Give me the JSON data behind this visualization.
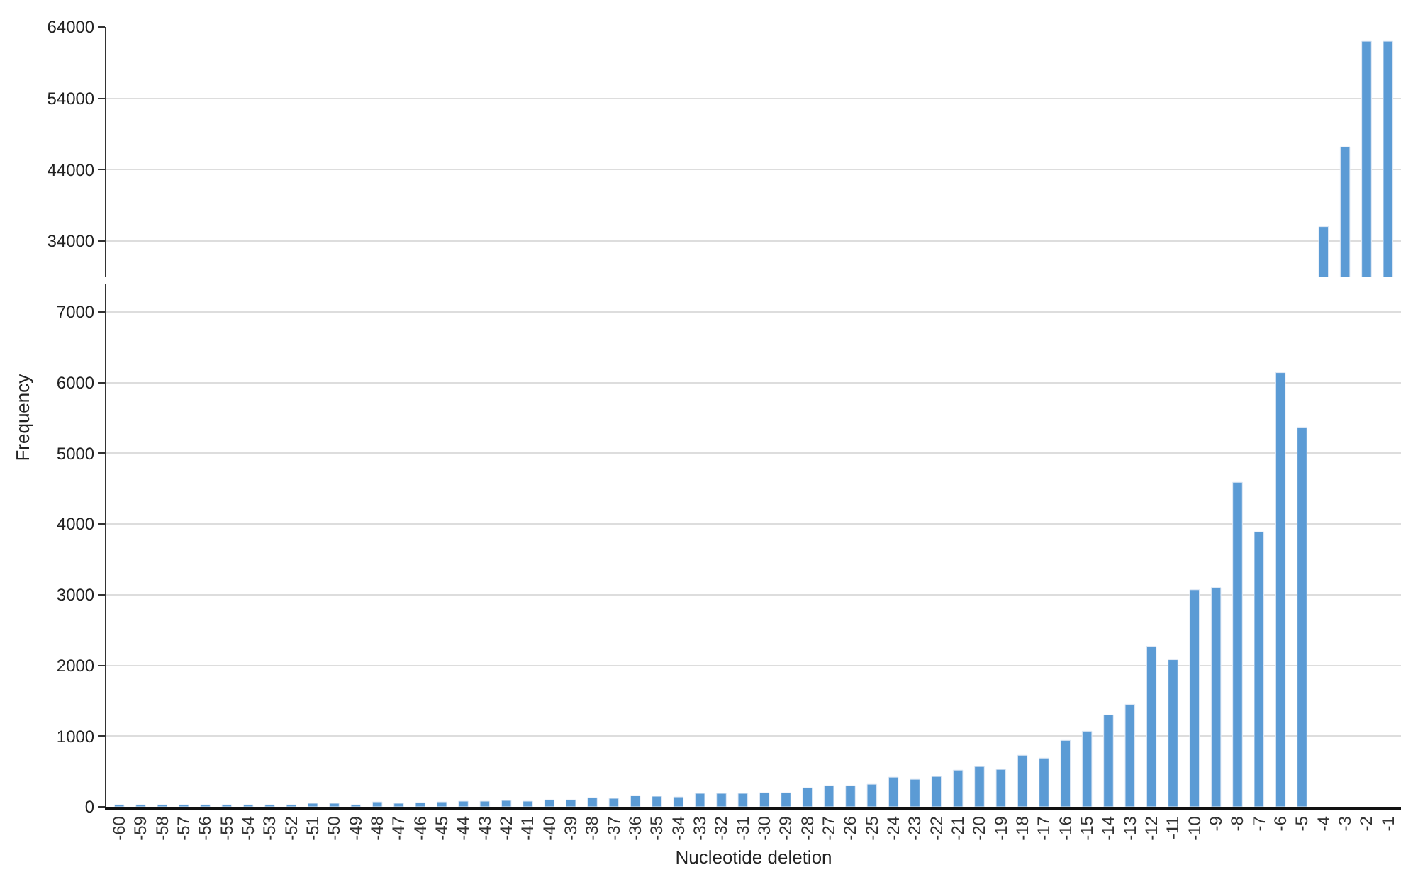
{
  "chart_data": [
    {
      "type": "bar",
      "categories": [
        "-60",
        "-59",
        "-58",
        "-57",
        "-56",
        "-55",
        "-54",
        "-53",
        "-52",
        "-51",
        "-50",
        "-49",
        "-48",
        "-47",
        "-46",
        "-45",
        "-44",
        "-43",
        "-42",
        "-41",
        "-40",
        "-39",
        "-38",
        "-37",
        "-36",
        "-35",
        "-34",
        "-33",
        "-32",
        "-31",
        "-30",
        "-29",
        "-28",
        "-27",
        "-26",
        "-25",
        "-24",
        "-23",
        "-22",
        "-21",
        "-20",
        "-19",
        "-18",
        "-17",
        "-16",
        "-15",
        "-14",
        "-13",
        "-12",
        "-11",
        "-10",
        "-9",
        "-8",
        "-7",
        "-6",
        "-5",
        "-4",
        "-3",
        "-2",
        "-1"
      ],
      "values": [
        null,
        null,
        null,
        null,
        null,
        null,
        null,
        null,
        null,
        null,
        null,
        null,
        null,
        null,
        null,
        null,
        null,
        null,
        null,
        null,
        null,
        null,
        null,
        null,
        null,
        null,
        null,
        null,
        null,
        null,
        null,
        null,
        null,
        null,
        null,
        null,
        null,
        null,
        null,
        null,
        null,
        null,
        null,
        null,
        null,
        null,
        null,
        null,
        null,
        null,
        null,
        null,
        null,
        null,
        null,
        null,
        36000,
        47200,
        62000,
        62000
      ],
      "color": "#5b9bd5",
      "ylim": [
        29000,
        64000
      ],
      "yticks": [
        34000,
        44000,
        54000,
        64000
      ],
      "grid": "y",
      "legend": false,
      "tick_labels": "y"
    },
    {
      "type": "bar",
      "xlabel": "Nucleotide deletion",
      "ylabel": "Frequency",
      "categories": [
        "-60",
        "-59",
        "-58",
        "-57",
        "-56",
        "-55",
        "-54",
        "-53",
        "-52",
        "-51",
        "-50",
        "-49",
        "-48",
        "-47",
        "-46",
        "-45",
        "-44",
        "-43",
        "-42",
        "-41",
        "-40",
        "-39",
        "-38",
        "-37",
        "-36",
        "-35",
        "-34",
        "-33",
        "-32",
        "-31",
        "-30",
        "-29",
        "-28",
        "-27",
        "-26",
        "-25",
        "-24",
        "-23",
        "-22",
        "-21",
        "-20",
        "-19",
        "-18",
        "-17",
        "-16",
        "-15",
        "-14",
        "-13",
        "-12",
        "-11",
        "-10",
        "-9",
        "-8",
        "-7",
        "-6",
        "-5",
        "-4",
        "-3",
        "-2",
        "-1"
      ],
      "values": [
        30,
        30,
        30,
        30,
        30,
        30,
        30,
        30,
        30,
        50,
        50,
        30,
        70,
        50,
        60,
        70,
        80,
        80,
        90,
        80,
        100,
        100,
        130,
        120,
        160,
        150,
        140,
        190,
        190,
        190,
        200,
        200,
        270,
        300,
        300,
        320,
        420,
        390,
        430,
        520,
        570,
        530,
        730,
        690,
        940,
        1070,
        1300,
        1450,
        2270,
        2080,
        3070,
        3100,
        4590,
        3890,
        6140,
        5370,
        null,
        null,
        null,
        null
      ],
      "color": "#5b9bd5",
      "ylim": [
        0,
        7400
      ],
      "yticks": [
        0,
        1000,
        2000,
        3000,
        4000,
        5000,
        6000,
        7000
      ],
      "grid": "y",
      "legend": false
    }
  ]
}
